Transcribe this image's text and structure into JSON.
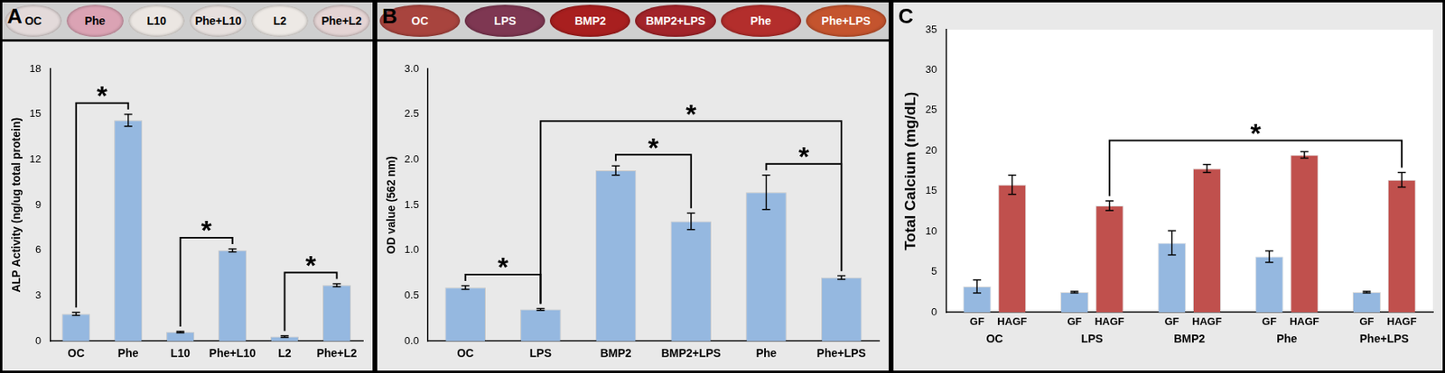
{
  "chart_data": [
    {
      "type": "bar",
      "panel": "A",
      "wells": [
        {
          "label": "OC",
          "color": "#e3dada"
        },
        {
          "label": "Phe",
          "color": "#dba3b4"
        },
        {
          "label": "L10",
          "color": "#ebe6e2"
        },
        {
          "label": "Phe+L10",
          "color": "#e7e0de"
        },
        {
          "label": "L2",
          "color": "#ede9e5"
        },
        {
          "label": "Phe+L2",
          "color": "#e4d4d4"
        }
      ],
      "categories": [
        "OC",
        "Phe",
        "L10",
        "Phe+L10",
        "L2",
        "Phe+L2"
      ],
      "values": [
        1.8,
        14.6,
        0.6,
        6.0,
        0.3,
        3.7
      ],
      "errors": [
        0.1,
        0.4,
        0.05,
        0.1,
        0.05,
        0.1
      ],
      "color": "#95b8e0",
      "y_label": "ALP Activity (ng/ug total protein)",
      "ylim": [
        0,
        18
      ],
      "yticks": [
        0,
        3,
        6,
        9,
        12,
        15,
        18
      ],
      "grid": false,
      "significance": [
        {
          "from": "OC",
          "to": "Phe",
          "label": "*"
        },
        {
          "from": "L10",
          "to": "Phe+L10",
          "label": "*"
        },
        {
          "from": "L2",
          "to": "Phe+L2",
          "label": "*"
        }
      ]
    },
    {
      "type": "bar",
      "panel": "B",
      "wells": [
        {
          "label": "OC",
          "color": "#a8443e"
        },
        {
          "label": "LPS",
          "color": "#7e3752"
        },
        {
          "label": "BMP2",
          "color": "#a81f1f"
        },
        {
          "label": "BMP2+LPS",
          "color": "#a2242a"
        },
        {
          "label": "Phe",
          "color": "#b32e2c"
        },
        {
          "label": "Phe+LPS",
          "color": "#c4542e"
        }
      ],
      "categories": [
        "OC",
        "LPS",
        "BMP2",
        "BMP2+LPS",
        "Phe",
        "Phe+LPS"
      ],
      "values": [
        0.59,
        0.35,
        1.88,
        1.32,
        1.64,
        0.7
      ],
      "errors": [
        0.02,
        0.01,
        0.05,
        0.09,
        0.19,
        0.02
      ],
      "color": "#95b8e0",
      "y_label": "OD value (562 nm)",
      "ylim": [
        0,
        3
      ],
      "yticks": [
        {
          "value": 0,
          "label": "0.0"
        },
        0.5,
        {
          "value": 1,
          "label": "1.0"
        },
        1.5,
        {
          "value": 2,
          "label": "2.0"
        },
        2.5,
        {
          "value": 3,
          "label": "3.0"
        }
      ],
      "grid": false,
      "significance": [
        {
          "from": "OC",
          "to": "LPS",
          "label": "*"
        },
        {
          "from": "BMP2",
          "to": "BMP2+LPS",
          "label": "*"
        },
        {
          "from": "Phe",
          "to": "Phe+LPS",
          "label": "*"
        },
        {
          "from": "LPS",
          "to": "Phe+LPS",
          "label": "*"
        }
      ]
    },
    {
      "type": "bar",
      "panel": "C",
      "categories": [
        "OC",
        "LPS",
        "BMP2",
        "Phe",
        "Phe+LPS"
      ],
      "series": [
        {
          "name": "GF",
          "color": "#95b8e0",
          "values": [
            3.2,
            2.5,
            8.6,
            6.9,
            2.5
          ],
          "errors": [
            0.8,
            0.1,
            1.5,
            0.7,
            0.1
          ]
        },
        {
          "name": "HAGF",
          "color": "#c0504d",
          "values": [
            15.8,
            13.2,
            17.8,
            19.5,
            16.4
          ],
          "errors": [
            1.2,
            0.6,
            0.5,
            0.4,
            0.9
          ]
        }
      ],
      "y_label": "Total Calcium (mg/dL)",
      "ylim": [
        0,
        35
      ],
      "yticks": [
        0,
        5,
        10,
        15,
        20,
        25,
        30,
        35
      ],
      "grid": false,
      "significance": [
        {
          "from": "LPS",
          "to": "Phe+LPS",
          "series": "HAGF",
          "label": "*"
        }
      ]
    }
  ]
}
